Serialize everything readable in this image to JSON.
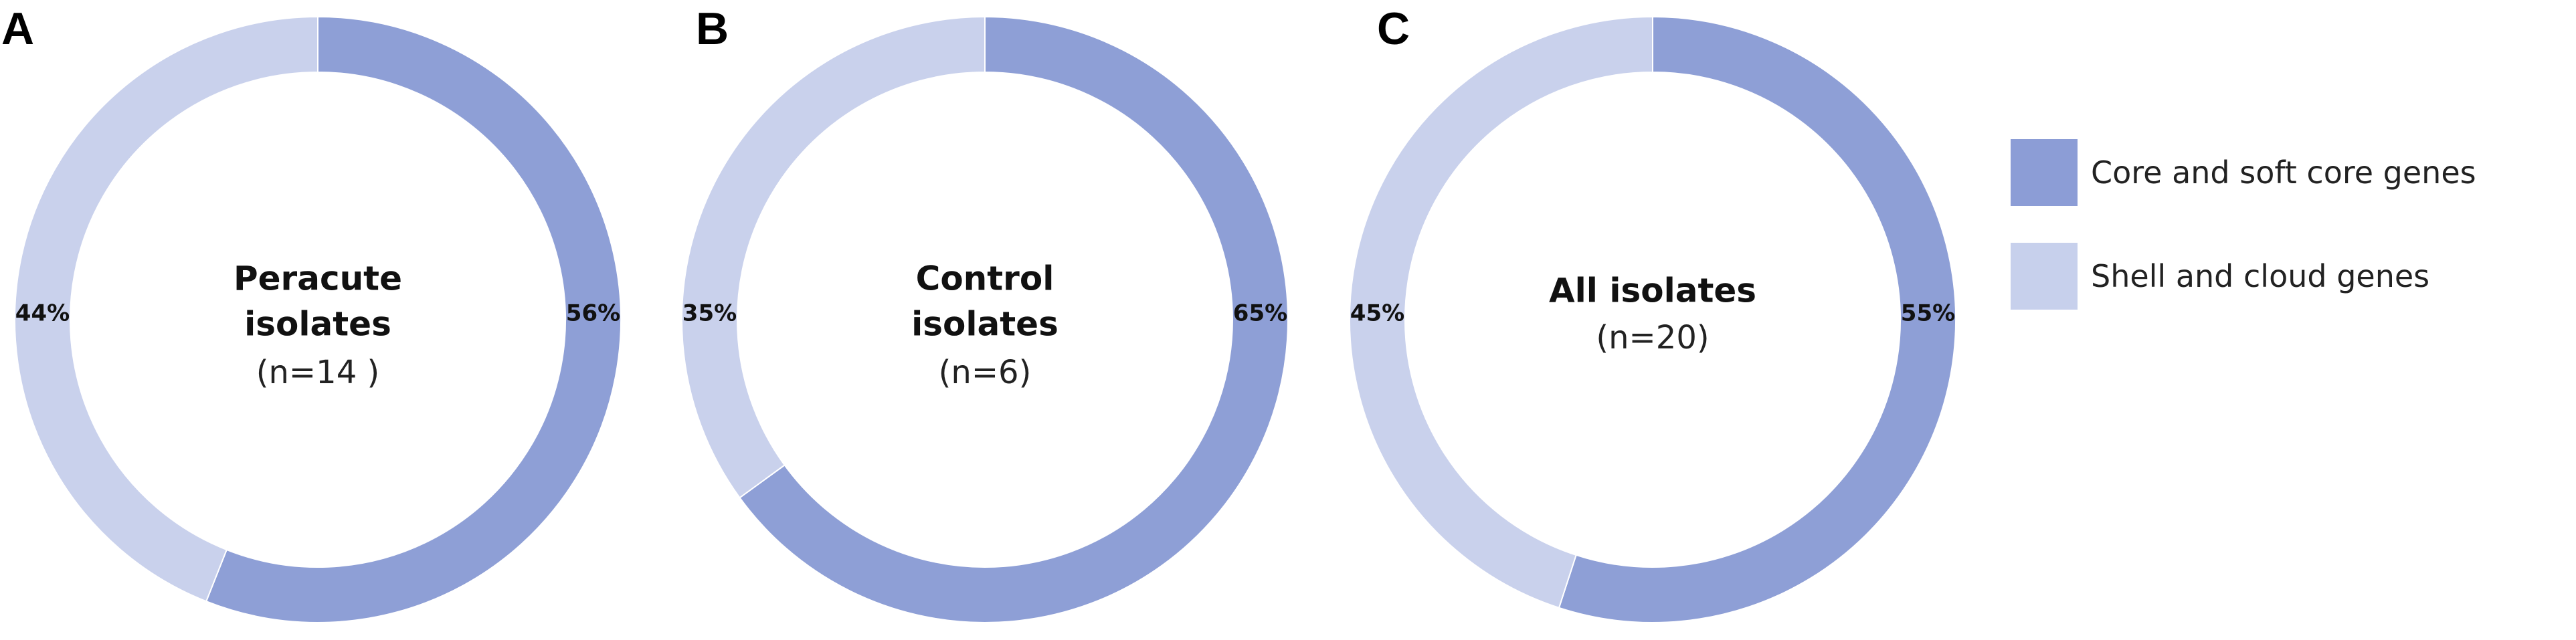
{
  "colors": {
    "core": "#8e9fd6",
    "shell": "#c9d1ec",
    "legend_core": "#8c9dd6",
    "legend_shell": "#c7d0ec"
  },
  "legend": {
    "items": [
      {
        "label": "Core and soft core genes",
        "color_key": "core"
      },
      {
        "label": "Shell and cloud genes",
        "color_key": "shell"
      }
    ]
  },
  "chart_data": [
    {
      "type": "pie",
      "panel": "A",
      "center_title": [
        "Peracute",
        "isolates"
      ],
      "center_subtitle": "(n=14 )",
      "slices": [
        {
          "name": "Core and soft core genes",
          "value": 56,
          "label": "56%"
        },
        {
          "name": "Shell and cloud genes",
          "value": 44,
          "label": "44%"
        }
      ]
    },
    {
      "type": "pie",
      "panel": "B",
      "center_title": [
        "Control",
        "isolates"
      ],
      "center_subtitle": "(n=6)",
      "slices": [
        {
          "name": "Core and soft core genes",
          "value": 65,
          "label": "65%"
        },
        {
          "name": "Shell and cloud genes",
          "value": 35,
          "label": "35%"
        }
      ]
    },
    {
      "type": "pie",
      "panel": "C",
      "center_title": [
        "All isolates"
      ],
      "center_subtitle": "(n=20)",
      "slices": [
        {
          "name": "Core and soft core genes",
          "value": 55,
          "label": "55%"
        },
        {
          "name": "Shell and cloud genes",
          "value": 45,
          "label": "45%"
        }
      ]
    }
  ]
}
